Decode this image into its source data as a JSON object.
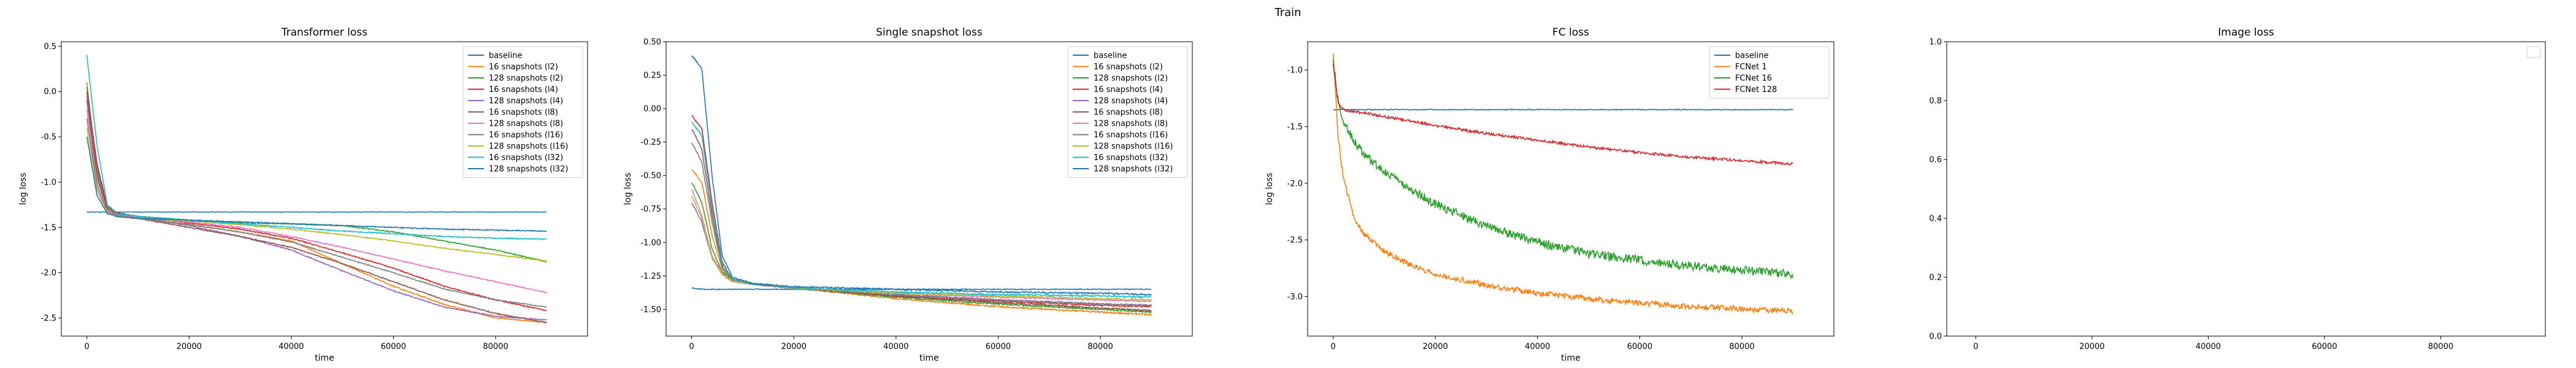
{
  "figure": {
    "suptitle": "Train"
  },
  "chart_data": [
    {
      "type": "line",
      "title": "Transformer loss",
      "xlabel": "time",
      "ylabel": "log loss",
      "xlim": [
        -5000,
        98000
      ],
      "ylim": [
        -2.7,
        0.55
      ],
      "xticks": [
        0,
        20000,
        40000,
        60000,
        80000
      ],
      "yticks": [
        -2.5,
        -2.0,
        -1.5,
        -1.0,
        -0.5,
        0.0,
        0.5
      ],
      "ytick_labels": [
        "-2.5",
        "-2.0",
        "-1.5",
        "-1.0",
        "-0.5",
        "0.0",
        "0.5"
      ],
      "legend_loc": "top-right",
      "x": [
        0,
        2000,
        4000,
        6000,
        10000,
        20000,
        30000,
        40000,
        50000,
        60000,
        70000,
        80000,
        90000
      ],
      "series": [
        {
          "name": "baseline",
          "color": "#1f77b4",
          "values": [
            -1.33,
            -1.33,
            -1.33,
            -1.33,
            -1.33,
            -1.33,
            -1.33,
            -1.33,
            -1.33,
            -1.33,
            -1.33,
            -1.33,
            -1.33
          ]
        },
        {
          "name": "16 snapshots (l2)",
          "color": "#ff7f0e",
          "values": [
            0.1,
            -0.9,
            -1.3,
            -1.36,
            -1.4,
            -1.47,
            -1.55,
            -1.65,
            -1.9,
            -2.15,
            -2.35,
            -2.5,
            -2.55
          ]
        },
        {
          "name": "128 snapshots (l2)",
          "color": "#2ca02c",
          "values": [
            0.05,
            -0.85,
            -1.28,
            -1.35,
            -1.38,
            -1.42,
            -1.45,
            -1.46,
            -1.48,
            -1.55,
            -1.65,
            -1.75,
            -1.88
          ]
        },
        {
          "name": "16 snapshots (l4)",
          "color": "#d62728",
          "values": [
            0.0,
            -0.8,
            -1.27,
            -1.34,
            -1.38,
            -1.45,
            -1.52,
            -1.62,
            -1.78,
            -1.95,
            -2.15,
            -2.3,
            -2.42
          ]
        },
        {
          "name": "128 snapshots (l4)",
          "color": "#9467bd",
          "values": [
            -0.05,
            -0.9,
            -1.3,
            -1.36,
            -1.39,
            -1.48,
            -1.6,
            -1.75,
            -1.98,
            -2.2,
            -2.38,
            -2.48,
            -2.52
          ]
        },
        {
          "name": "16 snapshots (l8)",
          "color": "#8c564b",
          "values": [
            -0.1,
            -0.95,
            -1.3,
            -1.37,
            -1.4,
            -1.5,
            -1.6,
            -1.72,
            -1.9,
            -2.1,
            -2.3,
            -2.45,
            -2.55
          ]
        },
        {
          "name": "128 snapshots (l8)",
          "color": "#e377c2",
          "values": [
            -0.2,
            -1.0,
            -1.32,
            -1.37,
            -1.39,
            -1.44,
            -1.5,
            -1.6,
            -1.72,
            -1.85,
            -1.98,
            -2.1,
            -2.22
          ]
        },
        {
          "name": "16 snapshots (l16)",
          "color": "#7f7f7f",
          "values": [
            -0.3,
            -1.05,
            -1.33,
            -1.38,
            -1.4,
            -1.47,
            -1.55,
            -1.66,
            -1.83,
            -2.0,
            -2.18,
            -2.3,
            -2.38
          ]
        },
        {
          "name": "128 snapshots (l16)",
          "color": "#bcbd22",
          "values": [
            -0.4,
            -1.1,
            -1.34,
            -1.38,
            -1.4,
            -1.43,
            -1.47,
            -1.52,
            -1.58,
            -1.65,
            -1.73,
            -1.8,
            -1.87
          ]
        },
        {
          "name": "16 snapshots (l32)",
          "color": "#17becf",
          "values": [
            0.4,
            -0.6,
            -1.25,
            -1.35,
            -1.38,
            -1.42,
            -1.46,
            -1.5,
            -1.54,
            -1.57,
            -1.6,
            -1.62,
            -1.63
          ]
        },
        {
          "name": "128 snapshots (l32)",
          "color": "#1f77b4",
          "values": [
            -0.5,
            -1.15,
            -1.35,
            -1.38,
            -1.4,
            -1.42,
            -1.44,
            -1.46,
            -1.48,
            -1.5,
            -1.52,
            -1.53,
            -1.54
          ]
        }
      ]
    },
    {
      "type": "line",
      "title": "Single snapshot loss",
      "xlabel": "time",
      "ylabel": "log loss",
      "xlim": [
        -5000,
        98000
      ],
      "ylim": [
        -1.7,
        0.5
      ],
      "xticks": [
        0,
        20000,
        40000,
        60000,
        80000
      ],
      "yticks": [
        -1.5,
        -1.25,
        -1.0,
        -0.75,
        -0.5,
        -0.25,
        0.0,
        0.25,
        0.5
      ],
      "ytick_labels": [
        "-1.50",
        "-1.25",
        "-1.00",
        "-0.75",
        "-0.50",
        "-0.25",
        "0.00",
        "0.25",
        "0.50"
      ],
      "legend_loc": "top-right",
      "x": [
        0,
        2000,
        4000,
        6000,
        8000,
        12000,
        20000,
        40000,
        60000,
        80000,
        90000
      ],
      "series": [
        {
          "name": "baseline",
          "color": "#1f77b4",
          "values": [
            -1.34,
            -1.35,
            -1.35,
            -1.35,
            -1.35,
            -1.35,
            -1.35,
            -1.35,
            -1.35,
            -1.35,
            -1.35
          ]
        },
        {
          "name": "16 snapshots (l2)",
          "color": "#ff7f0e",
          "values": [
            -0.45,
            -0.55,
            -0.95,
            -1.2,
            -1.28,
            -1.31,
            -1.34,
            -1.42,
            -1.48,
            -1.52,
            -1.54
          ]
        },
        {
          "name": "128 snapshots (l2)",
          "color": "#2ca02c",
          "values": [
            -0.55,
            -0.7,
            -1.05,
            -1.22,
            -1.28,
            -1.31,
            -1.34,
            -1.41,
            -1.46,
            -1.5,
            -1.52
          ]
        },
        {
          "name": "16 snapshots (l4)",
          "color": "#d62728",
          "values": [
            -0.05,
            -0.15,
            -0.7,
            -1.15,
            -1.27,
            -1.31,
            -1.34,
            -1.4,
            -1.44,
            -1.47,
            -1.48
          ]
        },
        {
          "name": "128 snapshots (l4)",
          "color": "#9467bd",
          "values": [
            -0.7,
            -0.85,
            -1.12,
            -1.24,
            -1.29,
            -1.31,
            -1.34,
            -1.39,
            -1.43,
            -1.46,
            -1.47
          ]
        },
        {
          "name": "16 snapshots (l8)",
          "color": "#8c564b",
          "values": [
            -0.15,
            -0.3,
            -0.8,
            -1.18,
            -1.28,
            -1.31,
            -1.34,
            -1.4,
            -1.45,
            -1.49,
            -1.51
          ]
        },
        {
          "name": "128 snapshots (l8)",
          "color": "#e377c2",
          "values": [
            -0.6,
            -0.8,
            -1.1,
            -1.23,
            -1.29,
            -1.31,
            -1.34,
            -1.38,
            -1.41,
            -1.43,
            -1.44
          ]
        },
        {
          "name": "16 snapshots (l16)",
          "color": "#7f7f7f",
          "values": [
            -0.25,
            -0.4,
            -0.85,
            -1.19,
            -1.28,
            -1.31,
            -1.34,
            -1.39,
            -1.43,
            -1.46,
            -1.47
          ]
        },
        {
          "name": "128 snapshots (l16)",
          "color": "#bcbd22",
          "values": [
            -0.65,
            -0.82,
            -1.12,
            -1.24,
            -1.29,
            -1.31,
            -1.34,
            -1.38,
            -1.4,
            -1.42,
            -1.43
          ]
        },
        {
          "name": "16 snapshots (l32)",
          "color": "#17becf",
          "values": [
            -0.1,
            -0.2,
            -0.75,
            -1.16,
            -1.27,
            -1.31,
            -1.34,
            -1.37,
            -1.39,
            -1.4,
            -1.41
          ]
        },
        {
          "name": "128 snapshots (l32)",
          "color": "#1f77b4",
          "values": [
            0.4,
            0.3,
            -0.5,
            -1.1,
            -1.26,
            -1.31,
            -1.33,
            -1.35,
            -1.37,
            -1.38,
            -1.39
          ]
        }
      ]
    },
    {
      "type": "line",
      "title": "FC loss",
      "xlabel": "time",
      "ylabel": "log loss",
      "xlim": [
        -5000,
        98000
      ],
      "ylim": [
        -3.35,
        -0.75
      ],
      "xticks": [
        0,
        20000,
        40000,
        60000,
        80000
      ],
      "yticks": [
        -3.0,
        -2.5,
        -2.0,
        -1.5,
        -1.0
      ],
      "ytick_labels": [
        "-3.0",
        "-2.5",
        "-2.0",
        "-1.5",
        "-1.0"
      ],
      "legend_loc": "top-right",
      "x": [
        0,
        1000,
        2000,
        4000,
        6000,
        10000,
        15000,
        20000,
        30000,
        40000,
        50000,
        60000,
        70000,
        80000,
        90000
      ],
      "series": [
        {
          "name": "baseline",
          "color": "#1f77b4",
          "values": [
            -1.35,
            -1.35,
            -1.35,
            -1.35,
            -1.35,
            -1.35,
            -1.35,
            -1.35,
            -1.35,
            -1.35,
            -1.35,
            -1.35,
            -1.35,
            -1.35,
            -1.35
          ]
        },
        {
          "name": "FCNet 1",
          "color": "#ff7f0e",
          "values": [
            -0.85,
            -1.6,
            -1.95,
            -2.3,
            -2.45,
            -2.6,
            -2.72,
            -2.8,
            -2.9,
            -2.97,
            -3.02,
            -3.06,
            -3.09,
            -3.11,
            -3.13
          ]
        },
        {
          "name": "FCNet 16",
          "color": "#2ca02c",
          "values": [
            -0.9,
            -1.3,
            -1.45,
            -1.62,
            -1.75,
            -1.9,
            -2.05,
            -2.18,
            -2.38,
            -2.52,
            -2.62,
            -2.68,
            -2.73,
            -2.77,
            -2.8
          ]
        },
        {
          "name": "FCNet 128",
          "color": "#d62728",
          "values": [
            -0.95,
            -1.3,
            -1.35,
            -1.37,
            -1.38,
            -1.41,
            -1.45,
            -1.49,
            -1.56,
            -1.62,
            -1.68,
            -1.73,
            -1.77,
            -1.8,
            -1.83
          ]
        }
      ]
    },
    {
      "type": "line",
      "title": "Image loss",
      "xlabel": "",
      "ylabel": "",
      "xlim": [
        -5000,
        98000
      ],
      "ylim": [
        0.0,
        1.0
      ],
      "xticks": [
        0,
        20000,
        40000,
        60000,
        80000
      ],
      "yticks": [
        0.0,
        0.2,
        0.4,
        0.6,
        0.8,
        1.0
      ],
      "ytick_labels": [
        "0.0",
        "0.2",
        "0.4",
        "0.6",
        "0.8",
        "1.0"
      ],
      "legend_loc": "top-right",
      "x": [],
      "series": []
    }
  ]
}
